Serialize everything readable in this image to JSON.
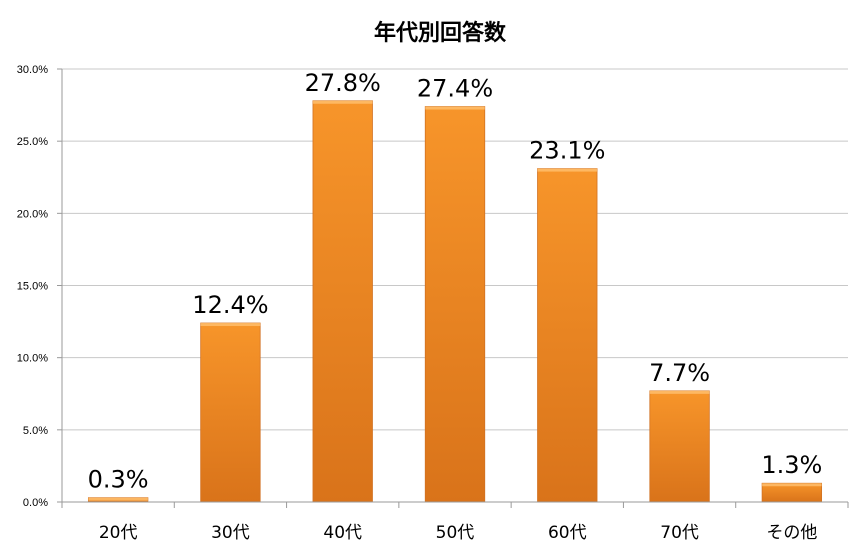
{
  "chart_data": {
    "type": "bar",
    "title": "年代別回答数",
    "categories": [
      "20代",
      "30代",
      "40代",
      "50代",
      "60代",
      "70代",
      "その他"
    ],
    "values": [
      0.3,
      12.4,
      27.8,
      27.4,
      23.1,
      7.7,
      1.3
    ],
    "data_labels": [
      "0.3%",
      "12.4%",
      "27.8%",
      "27.4%",
      "23.1%",
      "7.7%",
      "1.3%"
    ],
    "y_ticks": [
      "0.0%",
      "5.0%",
      "10.0%",
      "15.0%",
      "20.0%",
      "25.0%",
      "30.0%"
    ],
    "ylim": [
      0,
      30
    ],
    "y_step": 5,
    "grid": true,
    "legend": "none",
    "bar_color": "#f7952a",
    "bar_color_dark": "#d9731a"
  }
}
